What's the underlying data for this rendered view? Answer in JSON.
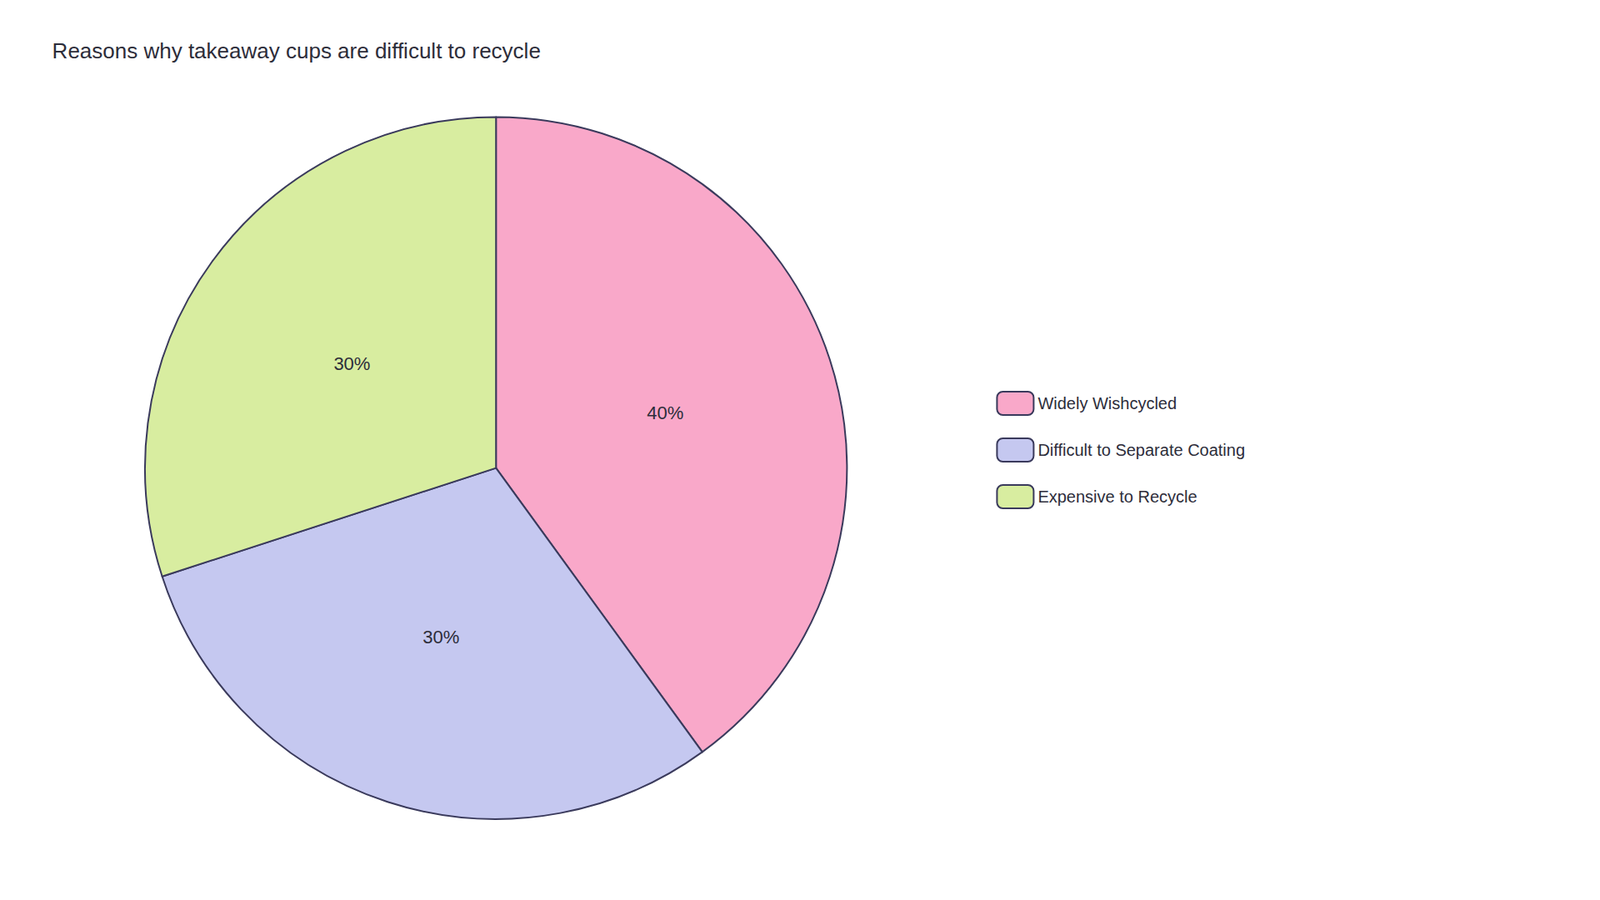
{
  "chart_data": {
    "type": "pie",
    "title": "Reasons why takeaway cups are difficult to recycle",
    "categories": [
      "Widely Wishcycled",
      "Difficult to Separate Coating",
      "Expensive to Recycle"
    ],
    "values": [
      40,
      30,
      30
    ],
    "value_labels": [
      "40%",
      "30%",
      "30%"
    ],
    "colors": [
      "#F9A8C9",
      "#C5C8F0",
      "#D8EDA0"
    ],
    "data_labels": true,
    "legend": "right"
  }
}
